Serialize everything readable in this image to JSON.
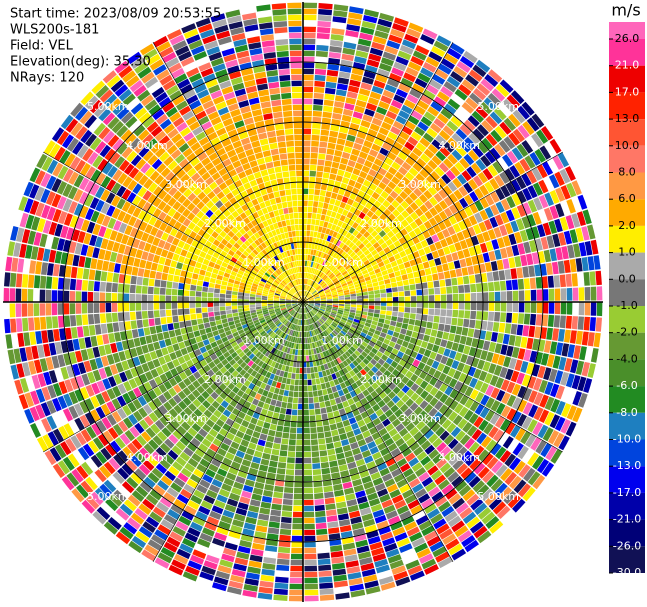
{
  "chart_data": {
    "type": "ppi",
    "info": [
      "Start time: 2023/08/09 20:53:55",
      "WLS200s-181",
      "Field: VEL",
      "Elevation(deg): 35.30",
      "NRays: 120"
    ],
    "range_rings": [
      "1.00km",
      "2.00km",
      "3.00km",
      "4.00km",
      "5.00km"
    ],
    "colorbar": {
      "unit": "m/s",
      "ticks": [
        {
          "value": 26,
          "label": "26.0"
        },
        {
          "value": 21,
          "label": "21.0"
        },
        {
          "value": 17,
          "label": "17.0"
        },
        {
          "value": 13,
          "label": "13.0"
        },
        {
          "value": 10,
          "label": "10.0"
        },
        {
          "value": 8,
          "label": "8.0"
        },
        {
          "value": 6,
          "label": "6.0"
        },
        {
          "value": 2,
          "label": "2.0"
        },
        {
          "value": 1,
          "label": "1.0"
        },
        {
          "value": 0,
          "label": "0.0"
        },
        {
          "value": -1,
          "label": "-1.0"
        },
        {
          "value": -2,
          "label": "-2.0"
        },
        {
          "value": -4,
          "label": "-4.0"
        },
        {
          "value": -6,
          "label": "-6.0"
        },
        {
          "value": -8,
          "label": "-8.0"
        },
        {
          "value": -10,
          "label": "-10.0"
        },
        {
          "value": -13,
          "label": "-13.0"
        },
        {
          "value": -17,
          "label": "-17.0"
        },
        {
          "value": -21,
          "label": "-21.0"
        },
        {
          "value": -26,
          "label": "-26.0"
        },
        {
          "value": -30,
          "label": "-30.0"
        }
      ],
      "colors": [
        "#ff66bb",
        "#ff3399",
        "#ee0000",
        "#ff2200",
        "#ff5533",
        "#ff7766",
        "#ff9944",
        "#ffaa00",
        "#ffee00",
        "#aaaaaa",
        "#777777",
        "#99cc33",
        "#669933",
        "#4a8f2a",
        "#228b22",
        "#1e7fc0",
        "#0044dd",
        "#0000ee",
        "#0000aa",
        "#000077",
        "#111155"
      ]
    }
  }
}
